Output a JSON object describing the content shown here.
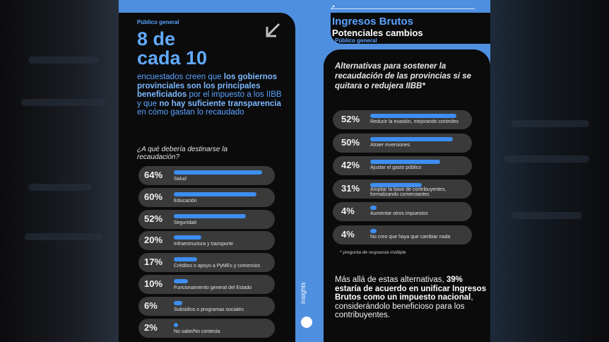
{
  "left": {
    "tag": "Público general",
    "big_line1": "8 de",
    "big_line2": "cada 10",
    "lead_parts": [
      {
        "text": "encuestados creen que ",
        "bold": false
      },
      {
        "text": "los gobiernos provinciales son los principales beneficiados",
        "bold": true
      },
      {
        "text": " por el impuesto a los IIBB y que ",
        "bold": false
      },
      {
        "text": "no hay suficiente transparencia",
        "bold": true
      },
      {
        "text": "   en cómo gastan lo recaudado",
        "bold": false
      }
    ],
    "question": "¿A qué debería destinarse la recaudación?"
  },
  "right": {
    "title": "Ingresos Brutos",
    "subtitle": "Potenciales cambios",
    "tag": "Público general",
    "question": "Alternativas para sostener la recaudación de las provincias si se quitara o redujera IIBB*",
    "note": "* pregunta de respuesta múltiple",
    "conclusion_parts": [
      {
        "text": "Más allá de estas alternativas, ",
        "bold": false
      },
      {
        "text": "39% estaría de acuerdo en unificar Ingresos Brutos como un impuesto nacional",
        "bold": true
      },
      {
        "text": ", considerándolo beneficioso para los contribuyentes.",
        "bold": false
      }
    ],
    "brand": "insights"
  },
  "chart_data": [
    {
      "type": "bar",
      "title": "¿A qué debería destinarse la recaudación?",
      "categories": [
        "Salud",
        "Educación",
        "Seguridad",
        "Infraestructura y transporte",
        "Créditos o apoyo a PyMEs y comercios",
        "Funcionamiento general del Estado",
        "Subsidios o programas sociales",
        "No sabe/No contesta"
      ],
      "values": [
        64,
        60,
        52,
        20,
        17,
        10,
        6,
        2
      ],
      "value_labels": [
        "64%",
        "60%",
        "52%",
        "20%",
        "17%",
        "10%",
        "6%",
        "2%"
      ],
      "unit": "%",
      "ylim": [
        0,
        64
      ],
      "grid": false,
      "bar_color": "#3d8ef0"
    },
    {
      "type": "bar",
      "title": "Alternativas para sostener la recaudación de las provincias si se quitara o redujera IIBB*",
      "categories": [
        "Reducir la evasión, mejorando controles",
        "Atraer inversiones",
        "Ajustar el gasto público",
        "Ampliar la base de contribuyentes, formalizando comerciantes",
        "Aumentar otros impuestos",
        "No creo que haya que cambiar nada"
      ],
      "label_lines": [
        [
          "Reducir la evasión, mejorando controles"
        ],
        [
          "Atraer inversiones"
        ],
        [
          "Ajustar el gasto público"
        ],
        [
          "Ampliar la base de contribuyentes,",
          "formalizando comerciantes"
        ],
        [
          "Aumentar otros impuestos"
        ],
        [
          "No creo que haya que cambiar nada"
        ]
      ],
      "values": [
        52,
        50,
        42,
        31,
        4,
        4
      ],
      "value_labels": [
        "52%",
        "50%",
        "42%",
        "31%",
        "4%",
        "4%"
      ],
      "unit": "%",
      "ylim": [
        0,
        52
      ],
      "grid": false,
      "bar_color": "#3d8ef0"
    }
  ]
}
